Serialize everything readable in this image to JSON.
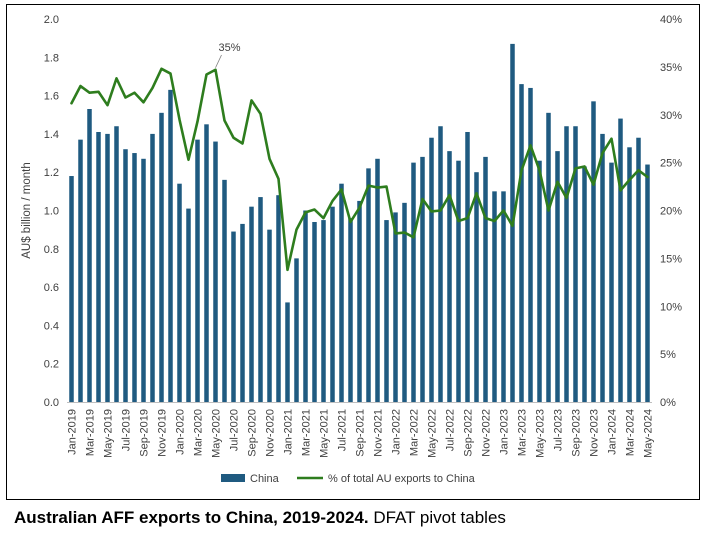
{
  "caption": {
    "bold": "Australian AFF exports to China, 2019-2024.",
    "normal": " DFAT pivot tables"
  },
  "colors": {
    "bar": "#1F5A80",
    "line": "#2E7D1E",
    "axis": "#BFBFBF"
  },
  "chart_data": {
    "type": "bar+line",
    "ylabel": "AU$ billion / month",
    "ylim": [
      0,
      2.0
    ],
    "y_ticks": [
      "0.0",
      "0.2",
      "0.4",
      "0.6",
      "0.8",
      "1.0",
      "1.2",
      "1.4",
      "1.6",
      "1.8",
      "2.0"
    ],
    "y2lim": [
      0,
      40
    ],
    "y2_ticks": [
      "0%",
      "5%",
      "10%",
      "15%",
      "20%",
      "25%",
      "30%",
      "35%",
      "40%"
    ],
    "x_tick_labels": [
      "Jan-2019",
      "Mar-2019",
      "May-2019",
      "Jul-2019",
      "Sep-2019",
      "Nov-2019",
      "Jan-2020",
      "Mar-2020",
      "May-2020",
      "Jul-2020",
      "Sep-2020",
      "Nov-2020",
      "Jan-2021",
      "Mar-2021",
      "May-2021",
      "Jul-2021",
      "Sep-2021",
      "Nov-2021",
      "Jan-2022",
      "Mar-2022",
      "May-2022",
      "Jul-2022",
      "Sep-2022",
      "Nov-2022",
      "Jan-2023",
      "Mar-2023",
      "May-2023",
      "Jul-2023",
      "Sep-2023",
      "Nov-2023",
      "Jan-2024",
      "Mar-2024",
      "May-2024"
    ],
    "annotation": {
      "text": "35%",
      "month_index": 16
    },
    "legend": {
      "position": "bottom"
    },
    "series": [
      {
        "name": "China",
        "type": "bar",
        "axis": "left",
        "values": [
          1.18,
          1.37,
          1.53,
          1.41,
          1.4,
          1.44,
          1.32,
          1.3,
          1.27,
          1.4,
          1.51,
          1.63,
          1.14,
          1.01,
          1.37,
          1.45,
          1.36,
          1.16,
          0.89,
          0.93,
          1.02,
          1.07,
          0.9,
          1.08,
          0.52,
          0.75,
          1.0,
          0.94,
          0.95,
          1.02,
          1.14,
          0.96,
          1.05,
          1.22,
          1.27,
          0.95,
          0.99,
          1.04,
          1.25,
          1.28,
          1.38,
          1.44,
          1.31,
          1.26,
          1.41,
          1.2,
          1.28,
          1.1,
          1.1,
          1.87,
          1.66,
          1.64,
          1.26,
          1.51,
          1.31,
          1.44,
          1.44,
          1.23,
          1.57,
          1.4,
          1.25,
          1.48,
          1.33,
          1.38,
          1.24
        ]
      },
      {
        "name": "% of total AU exports to China",
        "type": "line",
        "axis": "right",
        "values": [
          31.2,
          33.0,
          32.3,
          32.4,
          31.0,
          33.8,
          31.8,
          32.3,
          31.3,
          32.8,
          34.8,
          34.3,
          29.5,
          25.3,
          29.3,
          34.2,
          34.7,
          29.4,
          27.6,
          27.0,
          31.5,
          30.1,
          25.4,
          23.3,
          13.8,
          18.0,
          19.8,
          20.1,
          19.2,
          21.0,
          22.2,
          18.8,
          20.3,
          22.6,
          22.4,
          22.5,
          17.6,
          17.7,
          17.2,
          21.2,
          19.9,
          20.0,
          21.6,
          18.9,
          19.2,
          21.8,
          19.2,
          18.9,
          20.0,
          18.4,
          24.2,
          26.8,
          24.2,
          20.0,
          23.0,
          21.3,
          24.4,
          24.6,
          22.7,
          26.0,
          27.5,
          22.1,
          23.2,
          24.2,
          23.5
        ]
      }
    ]
  }
}
